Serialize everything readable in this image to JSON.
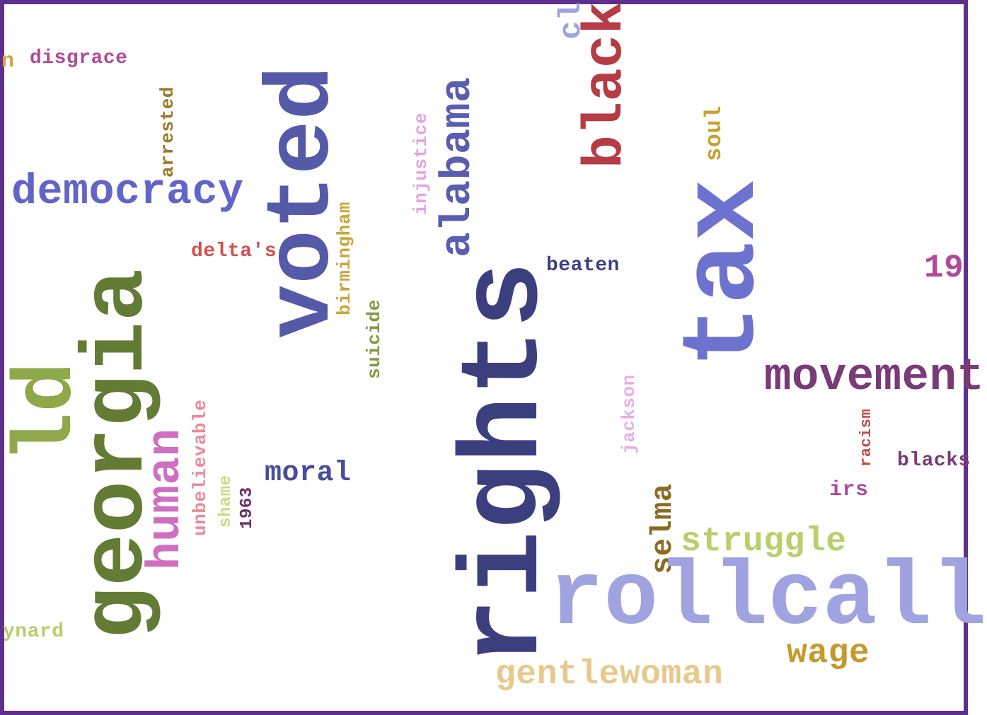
{
  "words": [
    {
      "text": "rights",
      "color": "#3b3f7e"
    },
    {
      "text": "voted",
      "color": "#545aa8"
    },
    {
      "text": "georgia",
      "color": "#637b34"
    },
    {
      "text": "tax",
      "color": "#6e72cf"
    },
    {
      "text": "rollcall",
      "color": "#a0a3e0"
    },
    {
      "text": "black",
      "color": "#b53b44"
    },
    {
      "text": "movement",
      "color": "#7a3a78"
    },
    {
      "text": "democracy",
      "color": "#6265c7"
    },
    {
      "text": "human",
      "color": "#cf6fc2"
    },
    {
      "text": "alabama",
      "color": "#5a5eb0"
    },
    {
      "text": "gentlewoman",
      "color": "#e8c98c"
    },
    {
      "text": "struggle",
      "color": "#b8cf6a"
    },
    {
      "text": "wage",
      "color": "#c49a2c"
    },
    {
      "text": "selma",
      "color": "#8c6a22"
    },
    {
      "text": "moral",
      "color": "#4a4d9a"
    },
    {
      "text": "unbelievable",
      "color": "#e88a9a"
    },
    {
      "text": "birmingham",
      "color": "#c8a73a"
    },
    {
      "text": "suicide",
      "color": "#7f9a3e"
    },
    {
      "text": "injustice",
      "color": "#e3a5e0"
    },
    {
      "text": "jackson",
      "color": "#e8b0e5"
    },
    {
      "text": "arrested",
      "color": "#9b7a2a"
    },
    {
      "text": "soul",
      "color": "#c8a030"
    },
    {
      "text": "beaten",
      "color": "#3d3f80"
    },
    {
      "text": "delta's",
      "color": "#d24f4f"
    },
    {
      "text": "disgrace",
      "color": "#b04a9a"
    },
    {
      "text": "shame",
      "color": "#c8dc84"
    },
    {
      "text": "1963",
      "color": "#6b2f6b"
    },
    {
      "text": "irs",
      "color": "#b04a9a"
    },
    {
      "text": "blacks",
      "color": "#7a3a78"
    },
    {
      "text": "racism",
      "color": "#c04a4a"
    },
    {
      "text": "19",
      "color": "#b04a9a"
    },
    {
      "text": "ynard",
      "color": "#b8cf6a"
    },
    {
      "text": "n",
      "color": "#d4a640"
    },
    {
      "text": "ld",
      "color": "#8fa84a"
    },
    {
      "text": "cl",
      "color": "#a0a3e0"
    }
  ]
}
